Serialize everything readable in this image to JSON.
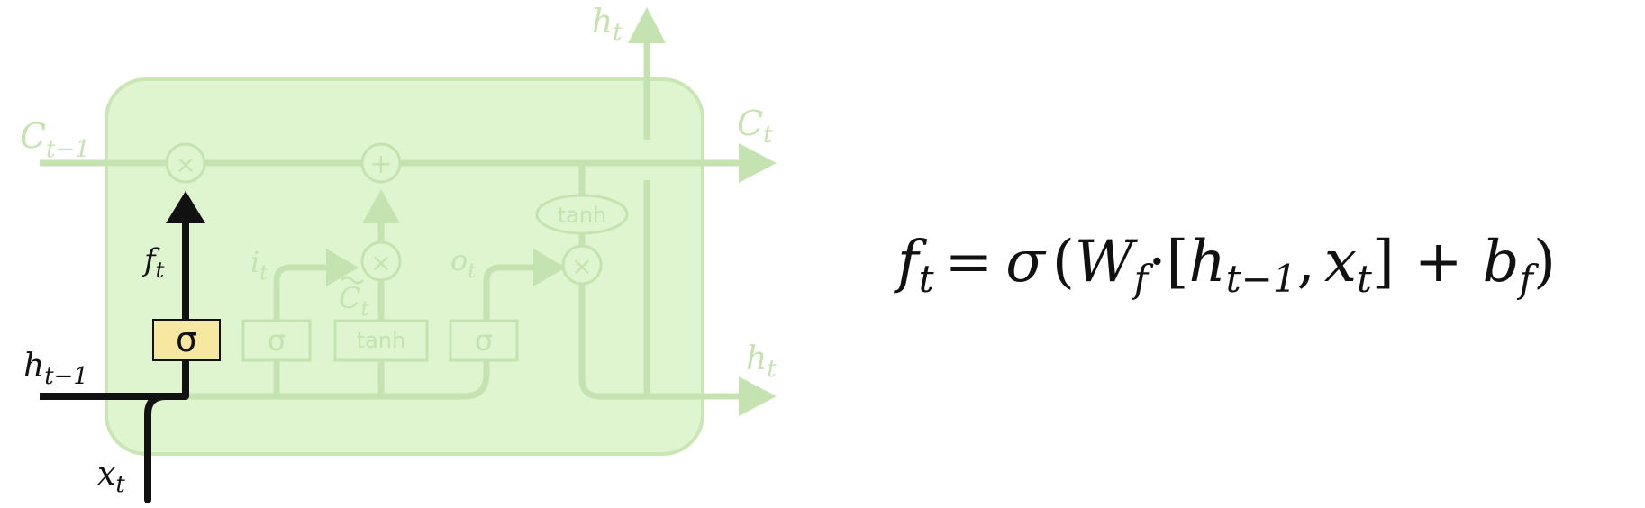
{
  "labels": {
    "c_in": "C",
    "c_in_sub": "t−1",
    "c_out": "C",
    "c_out_sub": "t",
    "h_top": "h",
    "h_top_sub": "t",
    "h_out": "h",
    "h_out_sub": "t",
    "h_in": "h",
    "h_in_sub": "t−1",
    "x_in": "x",
    "x_in_sub": "t",
    "f_gate": "f",
    "f_gate_sub": "t",
    "i_gate": "i",
    "i_gate_sub": "t",
    "o_gate": "o",
    "o_gate_sub": "t",
    "c_tilde": "C",
    "c_tilde_sub": "t"
  },
  "ops": {
    "times": "×",
    "plus": "+",
    "sigma": "σ",
    "tanh": "tanh"
  },
  "equation": {
    "lhs": "f",
    "lhs_sub": "t",
    "eq": "=",
    "sigma": "σ",
    "lparen": "(",
    "w": "W",
    "w_sub": "f",
    "dot": "·",
    "lbracket": "[",
    "h": "h",
    "h_sub": "t−1",
    "comma": ",",
    "x": "x",
    "x_sub": "t",
    "rbracket": "]",
    "plus": "+",
    "b": "b",
    "b_sub": "f",
    "rparen": ")"
  },
  "colors": {
    "cell_fill": "#dff5cf",
    "cell_stroke": "#c9e7b4",
    "faded": "#c5e3b0",
    "highlight_path": "#111111",
    "sigma_box_fill": "#f6e8a0"
  }
}
